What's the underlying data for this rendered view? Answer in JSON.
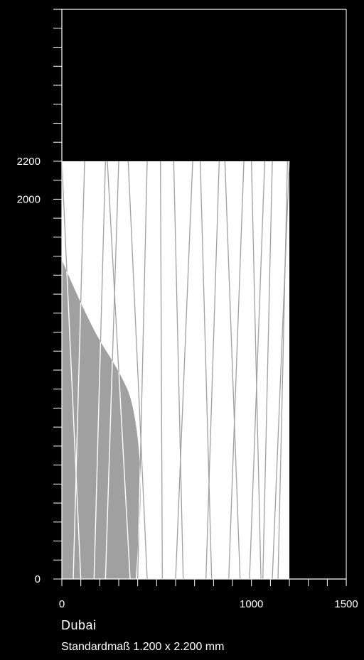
{
  "title": "Dubai",
  "subtitle": "Standardmaß 1.200 x 2.200 mm",
  "colors": {
    "background": "#000000",
    "panel": "#ffffff",
    "pattern_line": "#a0a0a0",
    "shadow": "#a0a0a0",
    "axis": "#ffffff"
  },
  "chart_data": {
    "type": "diagram",
    "panel": {
      "width_mm": 1200,
      "height_mm": 2200
    },
    "x_axis": {
      "range": [
        0,
        1500
      ],
      "major_ticks": [
        0,
        1000,
        1500
      ],
      "tick_labels": [
        "0",
        "1000",
        "1500"
      ],
      "minor_tick_step": 100
    },
    "y_axis": {
      "range": [
        0,
        3000
      ],
      "major_ticks": [
        0,
        2000,
        2200
      ],
      "tick_labels": [
        "0",
        "2000",
        "2200"
      ],
      "minor_tick_step": 100
    },
    "pattern_lines_mm": [
      [
        0,
        2200,
        100,
        0
      ],
      [
        120,
        2200,
        60,
        0
      ],
      [
        230,
        2200,
        170,
        0
      ],
      [
        300,
        2200,
        230,
        0
      ],
      [
        240,
        2200,
        360,
        0
      ],
      [
        350,
        2200,
        450,
        0
      ],
      [
        450,
        2200,
        400,
        0
      ],
      [
        520,
        2200,
        530,
        0
      ],
      [
        590,
        2200,
        640,
        0
      ],
      [
        690,
        2200,
        600,
        0
      ],
      [
        730,
        2200,
        790,
        0
      ],
      [
        830,
        2200,
        760,
        0
      ],
      [
        860,
        2200,
        940,
        0
      ],
      [
        960,
        2200,
        880,
        0
      ],
      [
        1000,
        2200,
        1050,
        0
      ],
      [
        1070,
        2200,
        990,
        0
      ],
      [
        1110,
        2200,
        1060,
        0
      ],
      [
        1190,
        2200,
        1140,
        0
      ],
      [
        1200,
        2200,
        1110,
        0
      ]
    ],
    "shadow_profile_mm": [
      [
        0,
        1680
      ],
      [
        150,
        1330
      ],
      [
        300,
        1100
      ],
      [
        390,
        900
      ],
      [
        430,
        600
      ],
      [
        410,
        300
      ],
      [
        390,
        0
      ],
      [
        0,
        0
      ]
    ]
  }
}
